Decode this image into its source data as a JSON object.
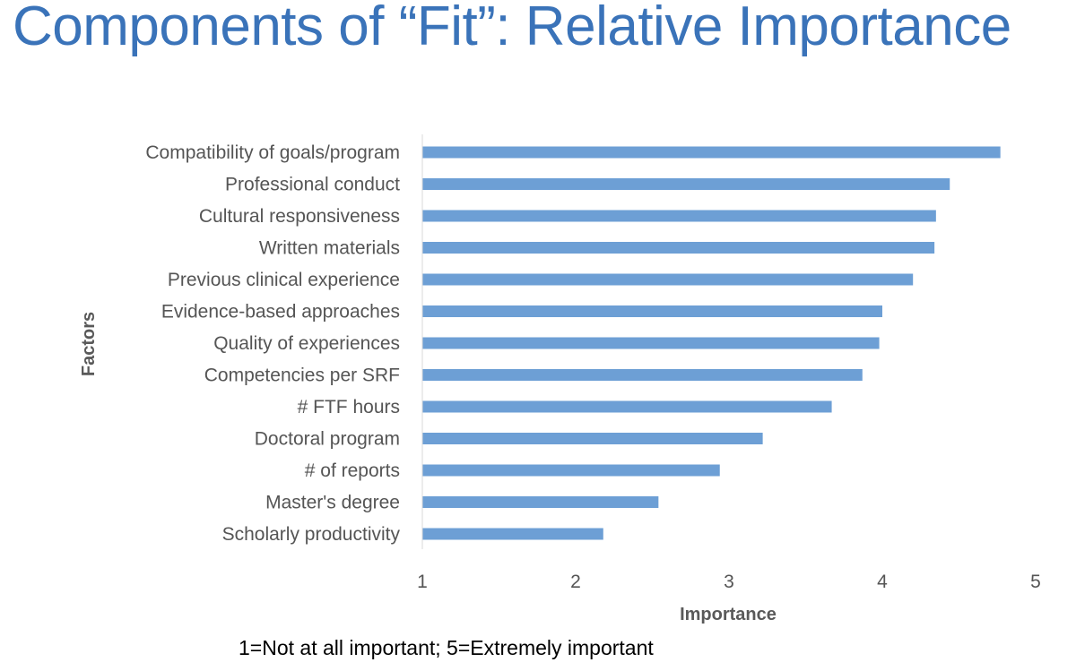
{
  "title": "Components of “Fit”: Relative Importance",
  "note": "1=Not at all important; 5=Extremely important",
  "chart_data": {
    "type": "bar",
    "orientation": "horizontal",
    "categories": [
      "Compatibility of goals/program",
      "Professional conduct",
      "Cultural responsiveness",
      "Written materials",
      "Previous clinical experience",
      "Evidence-based approaches",
      "Quality of experiences",
      "Competencies per SRF",
      "# FTF hours",
      "Doctoral program",
      "# of reports",
      "Master's degree",
      "Scholarly productivity"
    ],
    "values": [
      4.77,
      4.44,
      4.35,
      4.34,
      4.2,
      4.0,
      3.98,
      3.87,
      3.67,
      3.22,
      2.94,
      2.54,
      2.18
    ],
    "xlabel": "Importance",
    "ylabel": "Factors",
    "xlim": [
      1,
      5
    ],
    "xticks": [
      "1",
      "2",
      "3",
      "4",
      "5"
    ],
    "grid": false,
    "bar_color": "#6d9fd5"
  }
}
